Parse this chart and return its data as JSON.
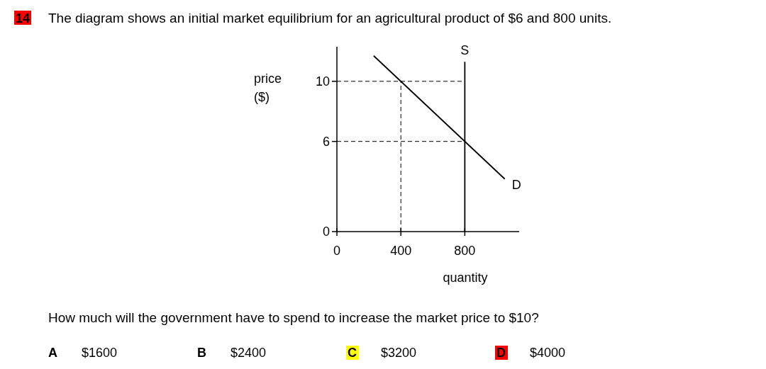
{
  "chart_data": {
    "type": "line",
    "title": "The diagram shows an initial market equilibrium for an agricultural product of $6 and 800 units.",
    "xlabel": "quantity",
    "ylabel": "price ($)",
    "xlim": [
      0,
      1140
    ],
    "ylim": [
      0,
      12.3
    ],
    "xticks": [
      0,
      400,
      800
    ],
    "yticks": [
      0,
      6,
      10
    ],
    "series": [
      {
        "name": "S",
        "color": "#000000",
        "x": [
          800,
          800
        ],
        "values": [
          0,
          11.3
        ]
      },
      {
        "name": "D",
        "color": "#000000",
        "x": [
          230,
          1050
        ],
        "values": [
          11.7,
          3.5
        ]
      }
    ],
    "ref_lines": [
      {
        "axis": "y",
        "value": 10,
        "line_style": "dashed",
        "color": "#000000"
      },
      {
        "axis": "y",
        "value": 6,
        "line_style": "dashed",
        "color": "#000000"
      },
      {
        "axis": "x",
        "value": 400,
        "line_style": "dashed",
        "color": "#000000"
      }
    ],
    "marker": "none",
    "line_style": "solid",
    "grid": false,
    "annotations": [
      "14",
      "How much will the government have to spend to increase the market price to $10?",
      "A",
      "$1600",
      "B",
      "$2400",
      "C",
      "$3200",
      "D",
      "$4000"
    ]
  }
}
